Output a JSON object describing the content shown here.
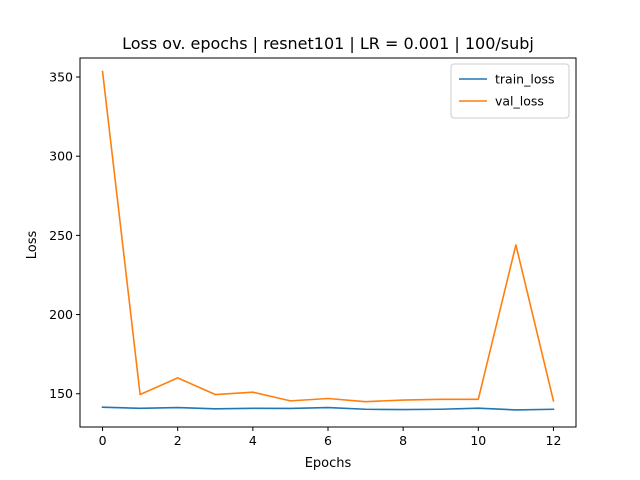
{
  "chart_data": {
    "type": "line",
    "title": "Loss ov. epochs | resnet101 | LR = 0.001 | 100/subj",
    "xlabel": "Epochs",
    "ylabel": "Loss",
    "x": [
      0,
      1,
      2,
      3,
      4,
      5,
      6,
      7,
      8,
      9,
      10,
      11,
      12
    ],
    "xlim": [
      -0.6,
      12.6
    ],
    "ylim": [
      129,
      362
    ],
    "xticks": [
      0,
      2,
      4,
      6,
      8,
      10,
      12
    ],
    "yticks": [
      150,
      200,
      250,
      300,
      350
    ],
    "grid": false,
    "legend_position": "top-right",
    "series": [
      {
        "name": "train_loss",
        "color": "#1f77b4",
        "values": [
          141.5,
          140.8,
          141.3,
          140.5,
          140.8,
          140.7,
          141.3,
          140.2,
          140.0,
          140.2,
          140.9,
          139.8,
          140.2
        ]
      },
      {
        "name": "val_loss",
        "color": "#ff7f0e",
        "values": [
          353.5,
          149.5,
          160.0,
          149.5,
          151.0,
          145.5,
          147.0,
          145.0,
          146.0,
          146.5,
          146.5,
          244.0,
          145.5
        ]
      }
    ]
  }
}
